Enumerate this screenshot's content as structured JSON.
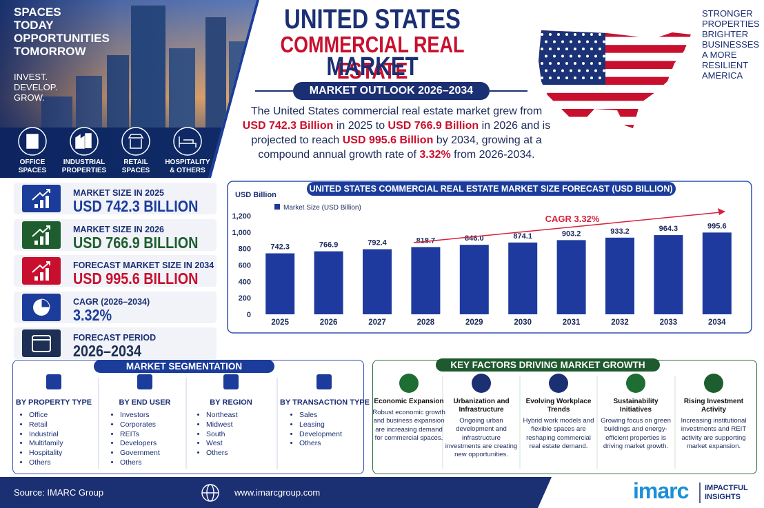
{
  "header": {
    "tagline": [
      "SPACES",
      "TODAY",
      "OPPORTUNITIES",
      "TOMORROW"
    ],
    "motto": [
      "INVEST.",
      "DEVELOP.",
      "GROW."
    ],
    "sectors": [
      [
        "OFFICE",
        "SPACES"
      ],
      [
        "INDUSTRIAL",
        "PROPERTIES"
      ],
      [
        "RETAIL",
        "SPACES"
      ],
      [
        "HOSPITALITY",
        "& OTHERS"
      ]
    ],
    "title": [
      "UNITED STATES",
      "COMMERCIAL REAL ESTATE",
      "MARKET"
    ],
    "outlook": "MARKET OUTLOOK 2026–2034",
    "summary": [
      "The United States commercial real estate market grew from ",
      "USD 742.3 Billion",
      " in 2025 to ",
      "USD 766.9 Billion",
      " in 2026 and is projected to reach ",
      "USD 995.6 Billion",
      " by 2034, growing at a compound annual growth rate of ",
      "3.32%",
      " from 2026-2034."
    ],
    "slogan": [
      "STRONGER",
      "PROPERTIES",
      "BRIGHTER",
      "BUSINESSES",
      "A MORE",
      "RESILIENT",
      "AMERICA"
    ]
  },
  "stats": [
    {
      "label": "MARKET SIZE IN 2025",
      "value": "USD 742.3 BILLION"
    },
    {
      "label": "MARKET SIZE IN 2026",
      "value": "USD 766.9 BILLION"
    },
    {
      "label": "FORECAST MARKET SIZE IN 2034",
      "value": "USD 995.6 BILLION"
    },
    {
      "label": "CAGR (2026–2034)",
      "value": "3.32%"
    },
    {
      "label": "FORECAST PERIOD",
      "value": "2026–2034"
    }
  ],
  "chart_data": {
    "type": "bar",
    "title": "UNITED STATES COMMERCIAL REAL ESTATE MARKET SIZE FORECAST (USD BILLION)",
    "y_label": "USD Billion",
    "categories": [
      "2025",
      "2026",
      "2027",
      "2028",
      "2029",
      "2030",
      "2031",
      "2032",
      "2033",
      "2034"
    ],
    "series": [
      {
        "name": "Market Size (USD Billion)",
        "color": "#1e3a9e",
        "values": [
          742.3,
          766.9,
          792.4,
          818.7,
          846.0,
          874.1,
          903.2,
          933.2,
          964.3,
          995.6
        ],
        "value_labels": [
          "742.3",
          "766.9",
          "792.4",
          "818.7",
          "846.0",
          "874.1",
          "903.2",
          "933.2",
          "964.3",
          "995.6"
        ]
      }
    ],
    "ylim": [
      0,
      1200
    ],
    "yticks": [
      0,
      200,
      400,
      600,
      800,
      {
        "value": 1000,
        "label": "1,000"
      },
      {
        "value": 1200,
        "label": "1,200"
      }
    ],
    "annotation": "CAGR 3.32%",
    "legend": "top-left"
  },
  "segmentation": {
    "title": "MARKET SEGMENTATION",
    "groups": [
      {
        "title": "BY PROPERTY TYPE",
        "items": [
          "Office",
          "Retail",
          "Industrial",
          "Multifamily",
          "Hospitality",
          "Others"
        ]
      },
      {
        "title": "BY END USER",
        "items": [
          "Investors",
          "Corporates",
          "REITs",
          "Developers",
          "Government",
          "Others"
        ]
      },
      {
        "title": "BY REGION",
        "items": [
          "Northeast",
          "Midwest",
          "South",
          "West",
          "Others"
        ]
      },
      {
        "title": "BY TRANSACTION TYPE",
        "items": [
          "Sales",
          "Leasing",
          "Development",
          "Others"
        ]
      }
    ]
  },
  "factors": {
    "title": "KEY FACTORS DRIVING MARKET GROWTH",
    "items": [
      {
        "title": "Economic Expansion",
        "text": "Robust economic growth and business expansion are increasing demand for commercial spaces."
      },
      {
        "title": "Urbanization and Infrastructure",
        "text": "Ongoing urban development and infrastructure investments are creating new opportunities."
      },
      {
        "title": "Evolving Workplace Trends",
        "text": "Hybrid work models and flexible spaces are reshaping commercial real estate demand."
      },
      {
        "title": "Sustainability Initiatives",
        "text": "Growing focus on green buildings and energy-efficient properties is driving market growth."
      },
      {
        "title": "Rising Investment Activity",
        "text": "Increasing institutional investments and REIT activity are supporting market expansion."
      }
    ]
  },
  "footer": {
    "source": "Source: IMARC Group",
    "website": "www.imarcgroup.com",
    "logo": "imarc",
    "logo_tagline": [
      "IMPACTFUL",
      "INSIGHTS"
    ]
  }
}
